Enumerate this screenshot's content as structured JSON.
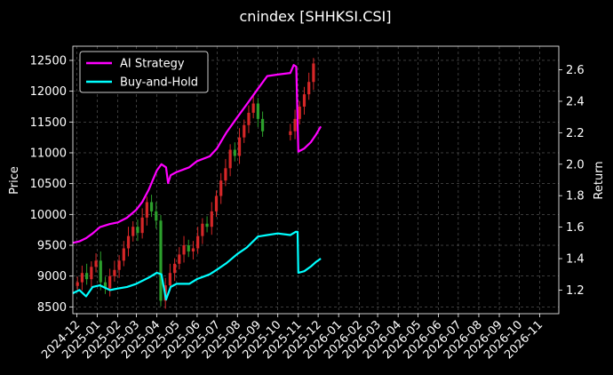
{
  "chart_data": {
    "type": "line",
    "title": "cnindex [SHHKSI.CSI]",
    "ylabel": "Price",
    "y2label": "Return",
    "ylim": [
      8390,
      12730
    ],
    "y2lim": [
      1.05,
      2.75
    ],
    "xlim": [
      "2024-11-25",
      "2026-11-30"
    ],
    "yticks": [
      8500,
      9000,
      9500,
      10000,
      10500,
      11000,
      11500,
      12000,
      12500
    ],
    "y2ticks": [
      1.2,
      1.4,
      1.6,
      1.8,
      2.0,
      2.2,
      2.4,
      2.6
    ],
    "xticks": [
      "2024-12",
      "2025-01",
      "2025-02",
      "2025-03",
      "2025-04",
      "2025-05",
      "2025-06",
      "2025-07",
      "2025-08",
      "2025-09",
      "2025-10",
      "2025-11",
      "2025-12",
      "2026-01",
      "2026-02",
      "2026-03",
      "2026-04",
      "2026-05",
      "2026-06",
      "2026-07",
      "2026-08",
      "2026-09",
      "2026-10",
      "2026-11"
    ],
    "grid": true,
    "legend_position": "top-left",
    "price_candles": {
      "axis": "left",
      "up_color": "#d62728",
      "down_color": "#2ca02c",
      "close": [
        [
          "2024-12-02",
          8900
        ],
        [
          "2024-12-09",
          9050
        ],
        [
          "2024-12-16",
          8950
        ],
        [
          "2024-12-23",
          9150
        ],
        [
          "2024-12-30",
          9250
        ],
        [
          "2025-01-06",
          8900
        ],
        [
          "2025-01-13",
          8800
        ],
        [
          "2025-01-20",
          9000
        ],
        [
          "2025-01-27",
          9100
        ],
        [
          "2025-02-03",
          9250
        ],
        [
          "2025-02-10",
          9450
        ],
        [
          "2025-02-17",
          9650
        ],
        [
          "2025-02-24",
          9800
        ],
        [
          "2025-03-03",
          9700
        ],
        [
          "2025-03-10",
          9950
        ],
        [
          "2025-03-17",
          10200
        ],
        [
          "2025-03-24",
          10050
        ],
        [
          "2025-03-31",
          9900
        ],
        [
          "2025-04-07",
          8600
        ],
        [
          "2025-04-14",
          8850
        ],
        [
          "2025-04-21",
          9050
        ],
        [
          "2025-04-28",
          9200
        ],
        [
          "2025-05-05",
          9350
        ],
        [
          "2025-05-12",
          9500
        ],
        [
          "2025-05-19",
          9400
        ],
        [
          "2025-05-26",
          9450
        ],
        [
          "2025-06-02",
          9650
        ],
        [
          "2025-06-09",
          9850
        ],
        [
          "2025-06-16",
          9800
        ],
        [
          "2025-06-23",
          10050
        ],
        [
          "2025-06-30",
          10300
        ],
        [
          "2025-07-07",
          10550
        ],
        [
          "2025-07-14",
          10750
        ],
        [
          "2025-07-21",
          11050
        ],
        [
          "2025-07-28",
          10950
        ],
        [
          "2025-08-04",
          11250
        ],
        [
          "2025-08-11",
          11450
        ],
        [
          "2025-08-18",
          11650
        ],
        [
          "2025-08-25",
          11800
        ],
        [
          "2025-09-01",
          11550
        ],
        [
          "2025-09-08",
          11350
        ],
        [
          "2025-09-15",
          null
        ],
        [
          "2025-09-22",
          null
        ],
        [
          "2025-09-29",
          null
        ],
        [
          "2025-10-06",
          null
        ],
        [
          "2025-10-13",
          null
        ],
        [
          "2025-10-20",
          11350
        ],
        [
          "2025-10-27",
          11550
        ],
        [
          "2025-11-03",
          11750
        ],
        [
          "2025-11-10",
          11950
        ],
        [
          "2025-11-17",
          12150
        ],
        [
          "2025-11-24",
          12450
        ]
      ]
    },
    "series": [
      {
        "name": "AI Strategy",
        "axis": "right",
        "color": "#ff00ff",
        "points": [
          [
            "2024-11-25",
            1.5
          ],
          [
            "2024-12-05",
            1.51
          ],
          [
            "2024-12-15",
            1.53
          ],
          [
            "2024-12-25",
            1.56
          ],
          [
            "2025-01-05",
            1.6
          ],
          [
            "2025-01-20",
            1.62
          ],
          [
            "2025-02-01",
            1.63
          ],
          [
            "2025-02-15",
            1.66
          ],
          [
            "2025-03-01",
            1.71
          ],
          [
            "2025-03-10",
            1.76
          ],
          [
            "2025-03-20",
            1.84
          ],
          [
            "2025-04-01",
            1.96
          ],
          [
            "2025-04-08",
            2.0
          ],
          [
            "2025-04-15",
            1.98
          ],
          [
            "2025-04-18",
            1.88
          ],
          [
            "2025-04-22",
            1.93
          ],
          [
            "2025-05-01",
            1.95
          ],
          [
            "2025-05-20",
            1.98
          ],
          [
            "2025-06-01",
            2.02
          ],
          [
            "2025-06-20",
            2.05
          ],
          [
            "2025-07-01",
            2.1
          ],
          [
            "2025-07-15",
            2.2
          ],
          [
            "2025-08-01",
            2.3
          ],
          [
            "2025-08-15",
            2.38
          ],
          [
            "2025-09-01",
            2.48
          ],
          [
            "2025-09-15",
            2.56
          ],
          [
            "2025-10-01",
            2.57
          ],
          [
            "2025-10-20",
            2.58
          ],
          [
            "2025-10-25",
            2.63
          ],
          [
            "2025-10-29",
            2.62
          ],
          [
            "2025-11-01",
            2.08
          ],
          [
            "2025-11-10",
            2.1
          ],
          [
            "2025-11-20",
            2.14
          ],
          [
            "2025-11-28",
            2.19
          ],
          [
            "2025-12-05",
            2.24
          ]
        ]
      },
      {
        "name": "Buy-and-Hold",
        "axis": "right",
        "color": "#00ffff",
        "points": [
          [
            "2024-11-25",
            1.18
          ],
          [
            "2024-12-05",
            1.2
          ],
          [
            "2024-12-15",
            1.16
          ],
          [
            "2024-12-25",
            1.22
          ],
          [
            "2025-01-05",
            1.23
          ],
          [
            "2025-01-20",
            1.2
          ],
          [
            "2025-02-01",
            1.21
          ],
          [
            "2025-02-15",
            1.22
          ],
          [
            "2025-03-01",
            1.24
          ],
          [
            "2025-03-20",
            1.28
          ],
          [
            "2025-04-01",
            1.31
          ],
          [
            "2025-04-08",
            1.3
          ],
          [
            "2025-04-15",
            1.14
          ],
          [
            "2025-04-22",
            1.22
          ],
          [
            "2025-05-01",
            1.24
          ],
          [
            "2025-05-20",
            1.24
          ],
          [
            "2025-06-01",
            1.27
          ],
          [
            "2025-06-20",
            1.3
          ],
          [
            "2025-07-01",
            1.33
          ],
          [
            "2025-07-15",
            1.37
          ],
          [
            "2025-08-01",
            1.43
          ],
          [
            "2025-08-15",
            1.47
          ],
          [
            "2025-09-01",
            1.54
          ],
          [
            "2025-09-15",
            1.55
          ],
          [
            "2025-10-01",
            1.56
          ],
          [
            "2025-10-20",
            1.55
          ],
          [
            "2025-10-28",
            1.57
          ],
          [
            "2025-10-31",
            1.57
          ],
          [
            "2025-11-01",
            1.31
          ],
          [
            "2025-11-10",
            1.32
          ],
          [
            "2025-11-20",
            1.35
          ],
          [
            "2025-11-28",
            1.38
          ],
          [
            "2025-12-05",
            1.4
          ]
        ]
      }
    ]
  }
}
